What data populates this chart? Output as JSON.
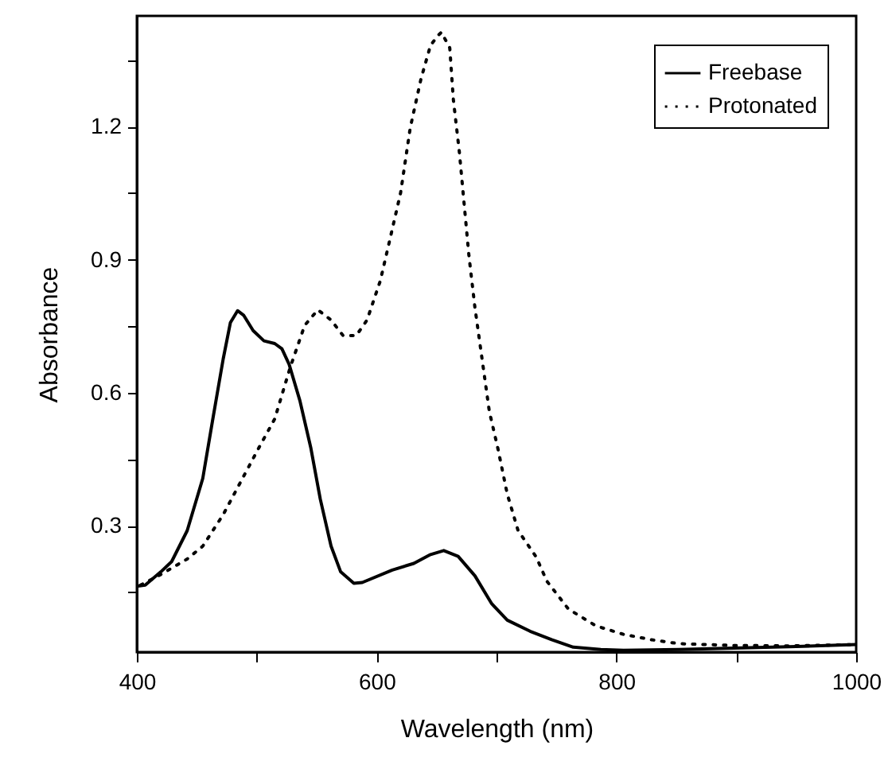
{
  "chart_data": {
    "type": "line",
    "xlabel": "Wavelength (nm)",
    "ylabel": "Absorbance",
    "xlim": [
      400,
      1000
    ],
    "xticks": [
      400,
      {
        "value": 500,
        "label": null
      },
      600,
      {
        "value": 700,
        "label": null
      },
      800,
      {
        "value": 900,
        "label": null
      },
      1000
    ],
    "ylim": [
      0.015,
      1.45
    ],
    "yticks": [
      {
        "value": 0.15,
        "label": null
      },
      0.3,
      {
        "value": 0.45,
        "label": null
      },
      0.6,
      {
        "value": 0.75,
        "label": null
      },
      0.9,
      {
        "value": 1.05,
        "label": null
      },
      1.2,
      {
        "value": 1.35,
        "label": null
      }
    ],
    "grid": false,
    "legend": "top right",
    "series": [
      {
        "name": "Freebase",
        "color": "#000000",
        "line_style": "solid",
        "x": [
          401,
          407,
          420,
          429,
          442,
          455,
          463,
          472,
          478,
          484,
          489,
          497,
          506,
          515,
          521,
          527,
          536,
          545,
          553,
          562,
          570,
          581,
          588,
          613,
          631,
          645,
          656,
          668,
          682,
          696,
          709,
          728,
          746,
          764,
          787,
          806,
          852,
          898,
          944,
          1000
        ],
        "values": [
          0.164,
          0.166,
          0.196,
          0.219,
          0.289,
          0.407,
          0.535,
          0.676,
          0.758,
          0.785,
          0.775,
          0.74,
          0.717,
          0.711,
          0.699,
          0.664,
          0.582,
          0.477,
          0.36,
          0.254,
          0.196,
          0.17,
          0.172,
          0.2,
          0.215,
          0.235,
          0.244,
          0.231,
          0.187,
          0.124,
          0.087,
          0.062,
          0.043,
          0.026,
          0.021,
          0.019,
          0.021,
          0.024,
          0.027,
          0.032
        ]
      },
      {
        "name": "Protonated",
        "color": "#000000",
        "line_style": "dotted",
        "x": [
          403,
          420,
          442,
          455,
          472,
          487,
          502,
          515,
          528,
          540,
          551,
          562,
          572,
          583,
          592,
          603,
          611,
          620,
          628,
          637,
          645,
          652,
          654,
          661,
          664,
          669,
          673,
          677,
          682,
          688,
          694,
          701,
          709,
          718,
          733,
          742,
          760,
          783,
          806,
          829,
          852,
          898,
          944,
          1000
        ],
        "values": [
          0.166,
          0.19,
          0.225,
          0.254,
          0.325,
          0.401,
          0.477,
          0.541,
          0.658,
          0.752,
          0.787,
          0.764,
          0.729,
          0.729,
          0.764,
          0.852,
          0.945,
          1.051,
          1.197,
          1.308,
          1.384,
          1.408,
          1.413,
          1.378,
          1.261,
          1.143,
          1.026,
          0.909,
          0.792,
          0.675,
          0.558,
          0.476,
          0.371,
          0.289,
          0.23,
          0.175,
          0.112,
          0.074,
          0.055,
          0.043,
          0.034,
          0.03,
          0.029,
          0.032
        ]
      }
    ]
  }
}
